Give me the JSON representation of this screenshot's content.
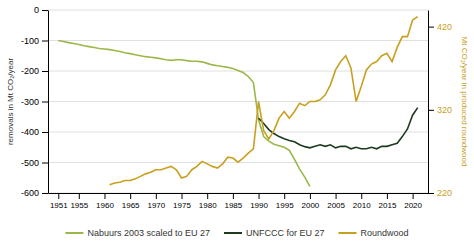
{
  "chart_data": {
    "type": "line",
    "y_label": "removals in Mt CO₂/year",
    "y2_label": "Mt CO₂/year in produced roundwood",
    "xlim": [
      1949,
      2023
    ],
    "xticks": [
      1951,
      1955,
      1960,
      1965,
      1970,
      1975,
      1980,
      1985,
      1990,
      1995,
      2000,
      2005,
      2010,
      2015,
      2020
    ],
    "ylim": [
      -600,
      0
    ],
    "yticks": [
      0,
      -100,
      -200,
      -300,
      -400,
      -500,
      -600
    ],
    "y2lim": [
      220,
      440
    ],
    "y2ticks": [
      220,
      320,
      420
    ],
    "grid": true,
    "legend": "bottom",
    "series": [
      {
        "name": "Nabuurs 2003 scaled to EU 27",
        "color": "#9ab84a",
        "x": [
          1951,
          1952,
          1953,
          1954,
          1955,
          1956,
          1957,
          1958,
          1959,
          1960,
          1961,
          1962,
          1963,
          1964,
          1965,
          1966,
          1967,
          1968,
          1969,
          1970,
          1971,
          1972,
          1973,
          1974,
          1975,
          1976,
          1977,
          1978,
          1979,
          1980,
          1981,
          1982,
          1983,
          1984,
          1985,
          1986,
          1987,
          1988,
          1989,
          1990,
          1991,
          1992,
          1993,
          1994,
          1995,
          1996,
          1997,
          1998,
          1999,
          2000
        ],
        "values": [
          -100,
          -103,
          -107,
          -110,
          -113,
          -117,
          -120,
          -123,
          -126,
          -128,
          -130,
          -133,
          -136,
          -140,
          -143,
          -147,
          -150,
          -153,
          -155,
          -157,
          -160,
          -163,
          -165,
          -163,
          -163,
          -166,
          -168,
          -168,
          -170,
          -175,
          -180,
          -183,
          -185,
          -188,
          -192,
          -198,
          -205,
          -218,
          -238,
          -360,
          -415,
          -430,
          -440,
          -445,
          -450,
          -460,
          -490,
          -522,
          -548,
          -578
        ]
      },
      {
        "name": "UNFCCC for EU 27",
        "color": "#1e3a1e",
        "x": [
          1990,
          1991,
          1992,
          1993,
          1994,
          1995,
          1996,
          1997,
          1998,
          1999,
          2000,
          2001,
          2002,
          2003,
          2004,
          2005,
          2006,
          2007,
          2008,
          2009,
          2010,
          2011,
          2012,
          2013,
          2014,
          2015,
          2016,
          2017,
          2018,
          2019,
          2020,
          2021
        ],
        "values": [
          -355,
          -372,
          -392,
          -405,
          -415,
          -422,
          -428,
          -432,
          -442,
          -448,
          -452,
          -447,
          -442,
          -447,
          -442,
          -452,
          -447,
          -447,
          -455,
          -450,
          -455,
          -455,
          -450,
          -455,
          -447,
          -447,
          -442,
          -437,
          -415,
          -390,
          -345,
          -320
        ]
      },
      {
        "name": "Roundwood",
        "color": "#c8a020",
        "axis": "y2",
        "x": [
          1961,
          1962,
          1963,
          1964,
          1965,
          1966,
          1967,
          1968,
          1969,
          1970,
          1971,
          1972,
          1973,
          1974,
          1975,
          1976,
          1977,
          1978,
          1979,
          1980,
          1981,
          1982,
          1983,
          1984,
          1985,
          1986,
          1987,
          1988,
          1989,
          1990,
          1991,
          1992,
          1993,
          1994,
          1995,
          1996,
          1997,
          1998,
          1999,
          2000,
          2001,
          2002,
          2003,
          2004,
          2005,
          2006,
          2007,
          2008,
          2009,
          2010,
          2011,
          2012,
          2013,
          2014,
          2015,
          2016,
          2017,
          2018,
          2019,
          2020,
          2021
        ],
        "values": [
          230,
          232,
          233,
          235,
          235,
          237,
          240,
          243,
          245,
          248,
          248,
          250,
          252,
          248,
          238,
          240,
          248,
          252,
          258,
          255,
          252,
          250,
          255,
          263,
          262,
          257,
          262,
          268,
          273,
          330,
          295,
          285,
          295,
          310,
          318,
          310,
          318,
          328,
          325,
          330,
          330,
          332,
          338,
          350,
          368,
          378,
          385,
          370,
          330,
          348,
          368,
          375,
          378,
          385,
          388,
          378,
          395,
          408,
          408,
          428,
          432
        ]
      }
    ]
  }
}
